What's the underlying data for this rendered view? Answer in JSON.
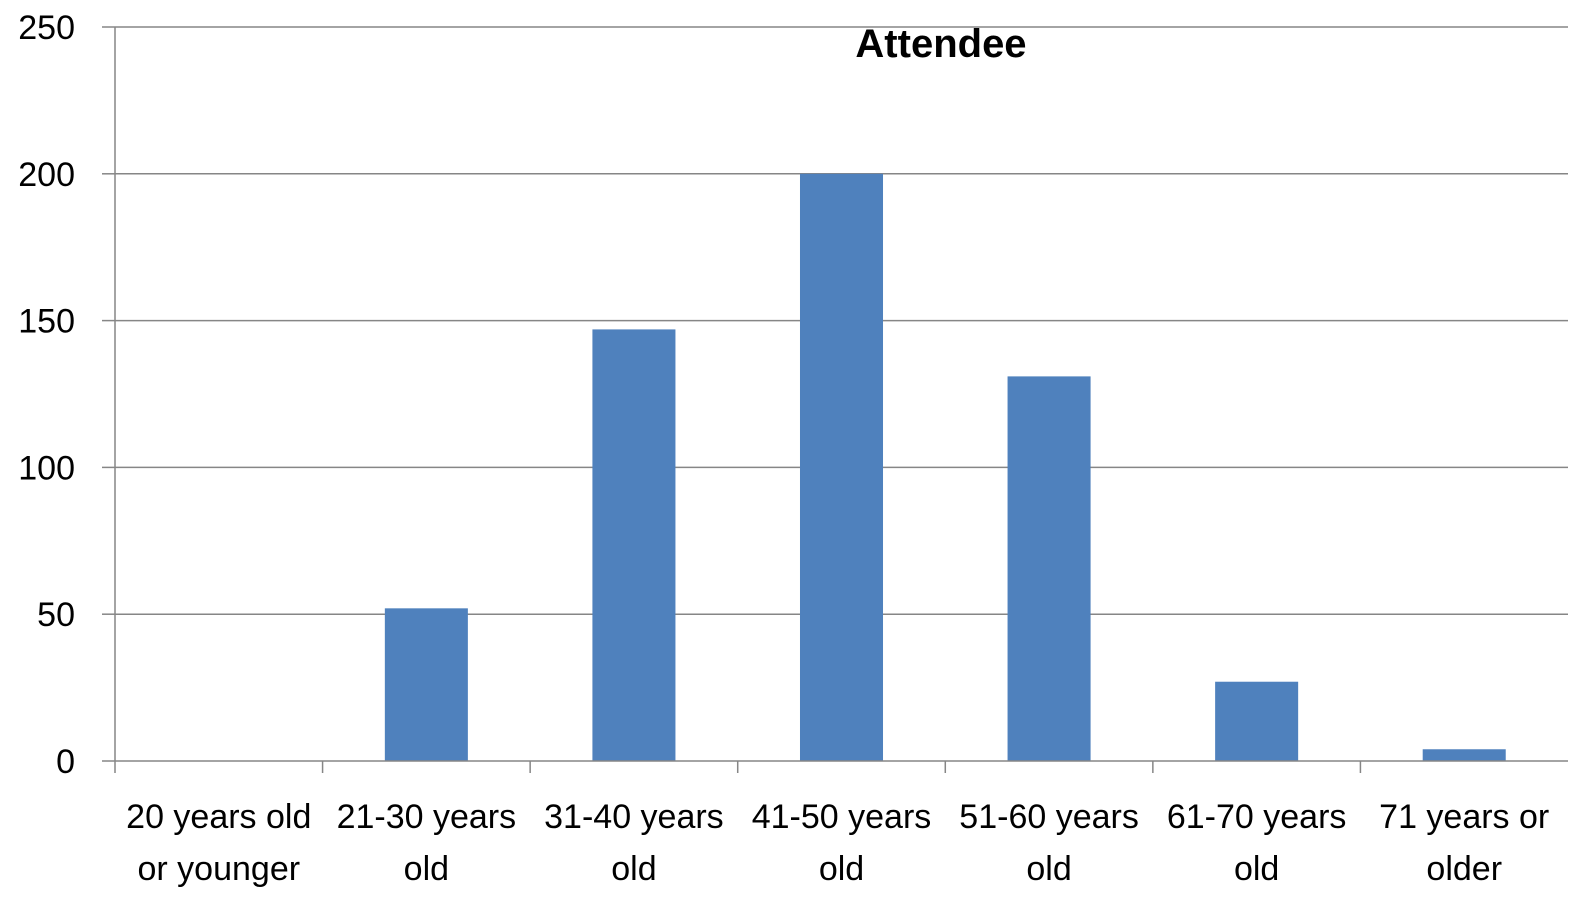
{
  "chart_data": {
    "type": "bar",
    "title": "Attendee",
    "xlabel": "",
    "ylabel": "",
    "categories": [
      [
        "20 years old",
        "or younger"
      ],
      [
        "21-30 years",
        "old"
      ],
      [
        "31-40 years",
        "old"
      ],
      [
        "41-50 years",
        "old"
      ],
      [
        "51-60 years",
        "old"
      ],
      [
        "61-70 years",
        "old"
      ],
      [
        "71 years or",
        "older"
      ]
    ],
    "values": [
      0,
      52,
      147,
      200,
      131,
      27,
      4
    ],
    "ylim": [
      0,
      250
    ],
    "yticks": [
      0,
      50,
      100,
      150,
      200,
      250
    ],
    "grid": true,
    "legend": "none",
    "colors": {
      "bar": "#4F81BD",
      "grid": "#868686",
      "axis": "#868686"
    }
  }
}
